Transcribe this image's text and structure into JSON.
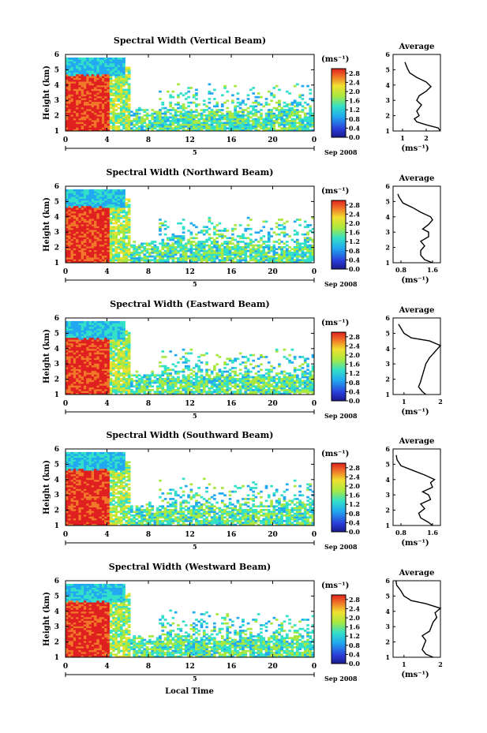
{
  "figure": {
    "xlabel_bottom": "Local Time",
    "date_label": "Sep 2008",
    "height_axis_label": "Height (km)",
    "colorbar_unit": "(ms⁻¹)",
    "average_title": "Average",
    "average_xlabel": "(ms⁻¹)"
  },
  "chart_data": [
    {
      "type": "heatmap",
      "title": "Spectral Width (Vertical Beam)",
      "ylabel": "Height (km)",
      "xlim": [
        0,
        24
      ],
      "ylim": [
        1,
        6
      ],
      "x_ticks": [
        "0",
        "4",
        "8",
        "12",
        "16",
        "20",
        "0"
      ],
      "y_ticks": [
        "1",
        "2",
        "3",
        "4",
        "5",
        "6"
      ],
      "x_secondary_label": "5",
      "colorbar_ticks": [
        "0.0",
        "0.4",
        "0.8",
        "1.2",
        "1.6",
        "2.0",
        "2.4",
        "2.8"
      ],
      "colorbar_range": [
        0,
        3
      ],
      "average": {
        "title": "Average",
        "xlabel": "(ms⁻¹)",
        "x_ticks": [
          "1",
          "2"
        ],
        "xlim": [
          0.6,
          2.6
        ],
        "profile": [
          [
            2.6,
            1.0
          ],
          [
            2.5,
            1.2
          ],
          [
            2.0,
            1.4
          ],
          [
            1.6,
            1.6
          ],
          [
            1.5,
            1.8
          ],
          [
            1.7,
            2.0
          ],
          [
            1.6,
            2.3
          ],
          [
            1.8,
            2.7
          ],
          [
            1.6,
            3.0
          ],
          [
            1.7,
            3.3
          ],
          [
            2.0,
            3.6
          ],
          [
            2.2,
            3.9
          ],
          [
            2.0,
            4.2
          ],
          [
            1.6,
            4.5
          ],
          [
            1.3,
            4.8
          ],
          [
            1.2,
            5.1
          ],
          [
            1.1,
            5.5
          ]
        ]
      }
    },
    {
      "type": "heatmap",
      "title": "Spectral Width (Northward Beam)",
      "ylabel": "Height (km)",
      "xlim": [
        0,
        24
      ],
      "ylim": [
        1,
        6
      ],
      "x_ticks": [
        "0",
        "4",
        "8",
        "12",
        "16",
        "20",
        "0"
      ],
      "y_ticks": [
        "1",
        "2",
        "3",
        "4",
        "5",
        "6"
      ],
      "x_secondary_label": "5",
      "colorbar_ticks": [
        "0.0",
        "0.4",
        "0.8",
        "1.2",
        "1.6",
        "2.0",
        "2.4",
        "2.8"
      ],
      "colorbar_range": [
        0,
        3
      ],
      "average": {
        "title": "Average",
        "xlabel": "(ms⁻¹)",
        "x_ticks": [
          "0.8",
          "1.6"
        ],
        "xlim": [
          0.6,
          1.8
        ],
        "profile": [
          [
            1.6,
            1.0
          ],
          [
            1.4,
            1.2
          ],
          [
            1.3,
            1.5
          ],
          [
            1.3,
            1.8
          ],
          [
            1.4,
            2.1
          ],
          [
            1.3,
            2.4
          ],
          [
            1.5,
            2.7
          ],
          [
            1.5,
            3.0
          ],
          [
            1.35,
            3.2
          ],
          [
            1.5,
            3.5
          ],
          [
            1.6,
            3.8
          ],
          [
            1.55,
            4.0
          ],
          [
            1.3,
            4.3
          ],
          [
            1.1,
            4.6
          ],
          [
            0.85,
            4.9
          ],
          [
            0.75,
            5.3
          ],
          [
            0.72,
            5.5
          ]
        ]
      }
    },
    {
      "type": "heatmap",
      "title": "Spectral Width (Eastward Beam)",
      "ylabel": "Height (km)",
      "xlim": [
        0,
        24
      ],
      "ylim": [
        1,
        6
      ],
      "x_ticks": [
        "0",
        "4",
        "8",
        "12",
        "16",
        "20",
        "0"
      ],
      "y_ticks": [
        "1",
        "2",
        "3",
        "4",
        "5",
        "6"
      ],
      "x_secondary_label": "5",
      "colorbar_ticks": [
        "0.0",
        "0.4",
        "0.8",
        "1.2",
        "1.6",
        "2.0",
        "2.4",
        "2.8"
      ],
      "colorbar_range": [
        0,
        3
      ],
      "average": {
        "title": "Average",
        "xlabel": "(ms⁻¹)",
        "x_ticks": [
          "1",
          "2"
        ],
        "xlim": [
          0.7,
          2.0
        ],
        "profile": [
          [
            1.6,
            1.0
          ],
          [
            1.5,
            1.2
          ],
          [
            1.4,
            1.5
          ],
          [
            1.45,
            1.8
          ],
          [
            1.5,
            2.2
          ],
          [
            1.55,
            2.6
          ],
          [
            1.6,
            3.0
          ],
          [
            1.7,
            3.4
          ],
          [
            1.85,
            3.8
          ],
          [
            2.0,
            4.2
          ],
          [
            1.7,
            4.5
          ],
          [
            1.2,
            4.7
          ],
          [
            1.0,
            5.0
          ],
          [
            0.9,
            5.4
          ],
          [
            0.85,
            5.6
          ]
        ]
      }
    },
    {
      "type": "heatmap",
      "title": "Spectral Width (Southward Beam)",
      "ylabel": "Height (km)",
      "xlim": [
        0,
        24
      ],
      "ylim": [
        1,
        6
      ],
      "x_ticks": [
        "0",
        "4",
        "8",
        "12",
        "16",
        "20",
        "0"
      ],
      "y_ticks": [
        "1",
        "2",
        "3",
        "4",
        "5",
        "6"
      ],
      "x_secondary_label": "5",
      "colorbar_ticks": [
        "0.0",
        "0.4",
        "0.8",
        "1.2",
        "1.6",
        "2.0",
        "2.4",
        "2.8"
      ],
      "colorbar_range": [
        0,
        3
      ],
      "average": {
        "title": "Average",
        "xlabel": "(ms⁻¹)",
        "x_ticks": [
          "0.8",
          "1.6"
        ],
        "xlim": [
          0.6,
          1.8
        ],
        "profile": [
          [
            1.6,
            1.0
          ],
          [
            1.5,
            1.2
          ],
          [
            1.3,
            1.5
          ],
          [
            1.25,
            1.8
          ],
          [
            1.4,
            2.1
          ],
          [
            1.3,
            2.4
          ],
          [
            1.55,
            2.7
          ],
          [
            1.5,
            3.0
          ],
          [
            1.35,
            3.2
          ],
          [
            1.6,
            3.5
          ],
          [
            1.55,
            3.8
          ],
          [
            1.65,
            4.0
          ],
          [
            1.4,
            4.3
          ],
          [
            1.1,
            4.6
          ],
          [
            0.8,
            4.9
          ],
          [
            0.7,
            5.3
          ],
          [
            0.68,
            5.6
          ]
        ]
      }
    },
    {
      "type": "heatmap",
      "title": "Spectral Width (Westward Beam)",
      "ylabel": "Height (km)",
      "xlim": [
        0,
        24
      ],
      "ylim": [
        1,
        6
      ],
      "x_ticks": [
        "0",
        "4",
        "8",
        "12",
        "16",
        "20",
        "0"
      ],
      "y_ticks": [
        "1",
        "2",
        "3",
        "4",
        "5",
        "6"
      ],
      "x_secondary_label": "5",
      "colorbar_ticks": [
        "0.0",
        "0.4",
        "0.8",
        "1.2",
        "1.6",
        "2.0",
        "2.4",
        "2.8"
      ],
      "colorbar_range": [
        0,
        3
      ],
      "average": {
        "title": "Average",
        "xlabel": "(ms⁻¹)",
        "x_ticks": [
          "1",
          "2"
        ],
        "xlim": [
          0.7,
          2.0
        ],
        "profile": [
          [
            1.8,
            1.0
          ],
          [
            1.6,
            1.2
          ],
          [
            1.5,
            1.5
          ],
          [
            1.55,
            1.8
          ],
          [
            1.6,
            2.1
          ],
          [
            1.5,
            2.4
          ],
          [
            1.7,
            2.7
          ],
          [
            1.75,
            3.0
          ],
          [
            1.8,
            3.3
          ],
          [
            1.9,
            3.6
          ],
          [
            1.85,
            3.9
          ],
          [
            2.0,
            4.2
          ],
          [
            1.6,
            4.5
          ],
          [
            1.2,
            4.7
          ],
          [
            1.0,
            5.0
          ],
          [
            0.9,
            5.4
          ],
          [
            0.8,
            5.7
          ],
          [
            0.78,
            6.0
          ]
        ]
      }
    }
  ]
}
